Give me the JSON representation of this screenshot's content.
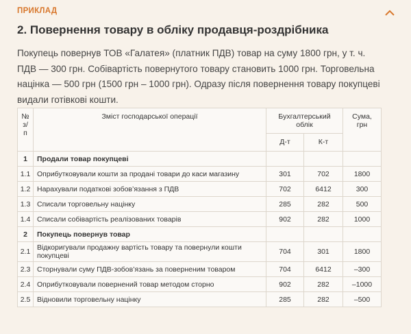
{
  "header": {
    "label": "ПРИКЛАД",
    "title": "2. Повернення товару в обліку продавця-роздрібника"
  },
  "paragraph": "Покупець повернув ТОВ «Галатея» (платник ПДВ) товар на суму 1800 грн, у т. ч. ПДВ — 300 грн. Собівартість повернутого товару становить 1000 грн. Торговельна націнка — 500 грн (1500 грн – 1000 грн). Одразу після повернення товару покупцеві видали готівкові кошти.",
  "table": {
    "columns": {
      "num": [
        "№",
        "з/п"
      ],
      "text": "Зміст господарської операції",
      "accounting": "Бухгалтерський облік",
      "debit": "Д-т",
      "credit": "К-т",
      "sum": "Сума, грн"
    },
    "rows": [
      {
        "num": "1",
        "text": "Продали товар покупцеві"
      },
      {
        "num": "1.1",
        "text": "Оприбутковували кошти за продані товари до каси магазину",
        "debit": "301",
        "credit": "702",
        "sum": "1800"
      },
      {
        "num": "1.2",
        "text": "Нарахували податкові зобов’язання з ПДВ",
        "debit": "702",
        "credit": "6412",
        "sum": "300"
      },
      {
        "num": "1.3",
        "text": "Списали торговельну націнку",
        "debit": "285",
        "credit": "282",
        "sum": "500"
      },
      {
        "num": "1.4",
        "text": "Списали собівартість реалізованих товарів",
        "debit": "902",
        "credit": "282",
        "sum": "1000"
      },
      {
        "num": "2",
        "text": "Покупець повернув товар"
      },
      {
        "num": "2.1",
        "text": "Відкоригували продажну вартість товару та повернули кошти покупцеві",
        "debit": "704",
        "credit": "301",
        "sum": "1800"
      },
      {
        "num": "2.3",
        "text": "Сторнували суму ПДВ-зобов’язань за поверненим товаром",
        "debit": "704",
        "credit": "6412",
        "sum": "–300"
      },
      {
        "num": "2.4",
        "text": "Оприбутковували повернений товар методом сторно",
        "debit": "902",
        "credit": "282",
        "sum": "–1000"
      },
      {
        "num": "2.5",
        "text": "Відновили торговельну націнку",
        "debit": "285",
        "credit": "282",
        "sum": "–500"
      }
    ]
  }
}
